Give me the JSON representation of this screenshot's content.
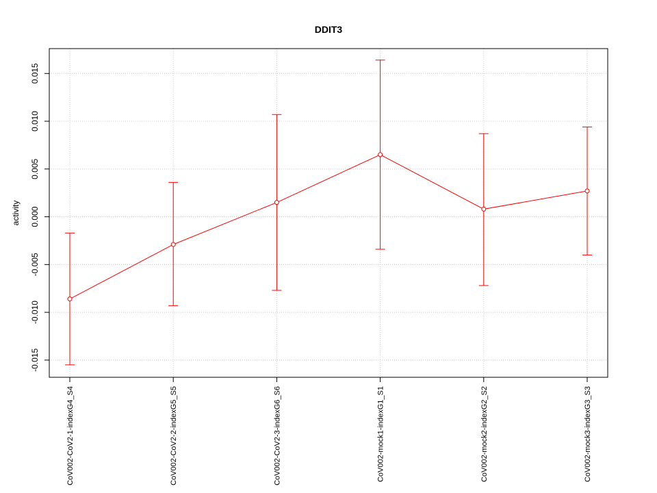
{
  "chart_data": {
    "type": "line",
    "title": "DDIT3",
    "xlabel": "",
    "ylabel": "activity",
    "categories": [
      "CoV002-CoV2-1-indexG4_S4",
      "CoV002-CoV2-2-indexG5_S5",
      "CoV002-CoV2-3-indexG6_S6",
      "CoV002-mock1-indexG1_S1",
      "CoV002-mock2-indexG2_S2",
      "CoV002-mock3-indexG3_S3"
    ],
    "series": [
      {
        "values": [
          -0.0086,
          -0.0029,
          0.0015,
          0.0065,
          0.0008,
          0.0027
        ],
        "error_low": [
          -0.0155,
          -0.0093,
          -0.0077,
          -0.0034,
          -0.0072,
          -0.004
        ],
        "error_high": [
          -0.0017,
          0.0036,
          0.0107,
          0.0164,
          0.0087,
          0.0094
        ],
        "color": "#ff0000"
      }
    ],
    "ylim": [
      -0.0168,
      0.0176
    ],
    "yticks": [
      -0.015,
      -0.01,
      -0.005,
      0.0,
      0.005,
      0.01,
      0.015
    ],
    "ytick_labels": [
      "-0.015",
      "-0.010",
      "-0.005",
      "0.000",
      "0.005",
      "0.010",
      "0.015"
    ],
    "grid": true
  }
}
